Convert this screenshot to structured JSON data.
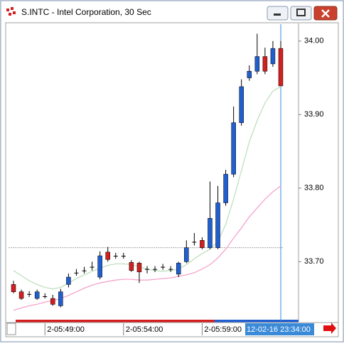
{
  "window": {
    "title": "S.INTC - Intel Corporation, 30 Sec"
  },
  "chart_data": {
    "type": "candlestick",
    "categories": [
      null,
      null,
      null,
      null,
      "2-05:49:00",
      null,
      null,
      null,
      null,
      null,
      null,
      null,
      null,
      null,
      "2-05:54:00",
      null,
      null,
      null,
      null,
      null,
      null,
      null,
      null,
      null,
      "2-05:59:00",
      null,
      null,
      null,
      null,
      null,
      null,
      null,
      null,
      null,
      null
    ],
    "open": [
      33.669,
      33.659,
      33.656,
      33.65,
      33.653,
      33.65,
      33.64,
      33.669,
      33.685,
      33.688,
      33.693,
      33.679,
      33.713,
      33.708,
      33.708,
      33.699,
      33.698,
      33.69,
      33.69,
      33.693,
      33.69,
      33.683,
      33.7,
      33.727,
      33.729,
      33.719,
      33.719,
      33.78,
      33.819,
      33.889,
      33.95,
      33.959,
      33.979,
      33.969,
      33.99
    ],
    "high": [
      33.674,
      33.662,
      33.66,
      33.662,
      33.657,
      33.655,
      33.663,
      33.684,
      33.69,
      33.693,
      33.7,
      33.714,
      33.72,
      33.712,
      33.712,
      33.702,
      33.7,
      33.694,
      33.694,
      33.697,
      33.694,
      33.7,
      33.729,
      33.739,
      33.733,
      33.809,
      33.803,
      33.825,
      33.911,
      33.948,
      33.967,
      34.01,
      33.991,
      34.0,
      34.0
    ],
    "low": [
      33.657,
      33.648,
      33.652,
      33.648,
      33.65,
      33.64,
      33.638,
      33.665,
      33.681,
      33.684,
      33.688,
      33.676,
      33.7,
      33.704,
      33.704,
      33.686,
      33.671,
      33.684,
      33.686,
      33.689,
      33.686,
      33.679,
      33.698,
      33.722,
      33.717,
      33.717,
      33.717,
      33.776,
      33.815,
      33.885,
      33.946,
      33.955,
      33.955,
      33.965,
      33.939
    ],
    "close": [
      33.659,
      33.65,
      33.656,
      33.659,
      33.653,
      33.642,
      33.659,
      33.679,
      33.685,
      33.688,
      33.693,
      33.708,
      33.703,
      33.708,
      33.708,
      33.688,
      33.686,
      33.69,
      33.69,
      33.693,
      33.69,
      33.698,
      33.719,
      33.727,
      33.719,
      33.759,
      33.78,
      33.819,
      33.889,
      33.938,
      33.959,
      33.979,
      33.959,
      33.99,
      33.939
    ],
    "up_color": "#1f5fd0",
    "down_color": "#d41f1f",
    "ylim": [
      33.623,
      34.023
    ],
    "yticks": [
      {
        "value": 33.7,
        "label": "33.70"
      },
      {
        "value": 33.8,
        "label": "33.80"
      },
      {
        "value": 33.9,
        "label": "33.90"
      },
      {
        "value": 34,
        "label": "34.00"
      }
    ],
    "overlays": [
      {
        "color": "#bfe0bf",
        "values": [
          33.688,
          33.681,
          33.674,
          33.669,
          33.665,
          33.663,
          33.665,
          33.671,
          33.677,
          33.682,
          33.687,
          33.691,
          33.695,
          33.697,
          33.697,
          33.696,
          33.693,
          33.69,
          33.688,
          33.687,
          33.688,
          33.69,
          33.696,
          33.704,
          33.711,
          33.717,
          33.727,
          33.751,
          33.785,
          33.824,
          33.863,
          33.892,
          33.916,
          33.932,
          33.938
        ]
      },
      {
        "color": "#f5a3cc",
        "values": [
          33.634,
          33.637,
          33.64,
          33.642,
          33.645,
          33.647,
          33.65,
          33.654,
          33.659,
          33.664,
          33.668,
          33.671,
          33.673,
          33.675,
          33.676,
          33.676,
          33.675,
          33.675,
          33.676,
          33.677,
          33.678,
          33.68,
          33.682,
          33.685,
          33.69,
          33.696,
          33.705,
          33.717,
          33.732,
          33.746,
          33.761,
          33.773,
          33.785,
          33.795,
          33.803
        ]
      }
    ],
    "reference_line": 33.719,
    "cursor_label": "12-02-16 23:34:00"
  }
}
